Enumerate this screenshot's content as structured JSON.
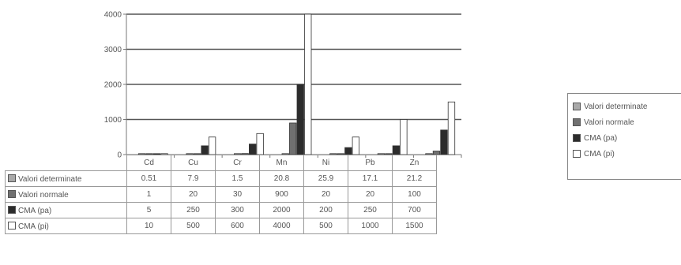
{
  "chart_data": {
    "type": "bar",
    "categories": [
      "Cd",
      "Cu",
      "Cr",
      "Mn",
      "Ni",
      "Pb",
      "Zn"
    ],
    "series": [
      {
        "name": "Valori determinate",
        "values": [
          0.51,
          7.9,
          1.5,
          20.8,
          25.9,
          17.1,
          21.2
        ],
        "color": "#a9a9a9"
      },
      {
        "name": "Valori normale",
        "values": [
          1,
          20,
          30,
          900,
          20,
          20,
          100
        ],
        "color": "#707070"
      },
      {
        "name": "CMA (pa)",
        "values": [
          5,
          250,
          300,
          2000,
          200,
          250,
          700
        ],
        "color": "#2c2c2c"
      },
      {
        "name": "CMA (pi)",
        "values": [
          10,
          500,
          600,
          4000,
          500,
          1000,
          1500
        ],
        "color": "#ffffff"
      }
    ],
    "table_values": [
      [
        "0.51",
        "7.9",
        "1.5",
        "20.8",
        "25.9",
        "17.1",
        "21.2"
      ],
      [
        "1",
        "20",
        "30",
        "900",
        "20",
        "20",
        "100"
      ],
      [
        "5",
        "250",
        "300",
        "2000",
        "200",
        "250",
        "700"
      ],
      [
        "10",
        "500",
        "600",
        "4000",
        "500",
        "1000",
        "1500"
      ]
    ],
    "ylim": [
      0,
      4000
    ],
    "yticks": [
      "0",
      "1000",
      "2000",
      "3000",
      "4000"
    ],
    "grid": true,
    "legend_position": "right",
    "data_table": true
  }
}
